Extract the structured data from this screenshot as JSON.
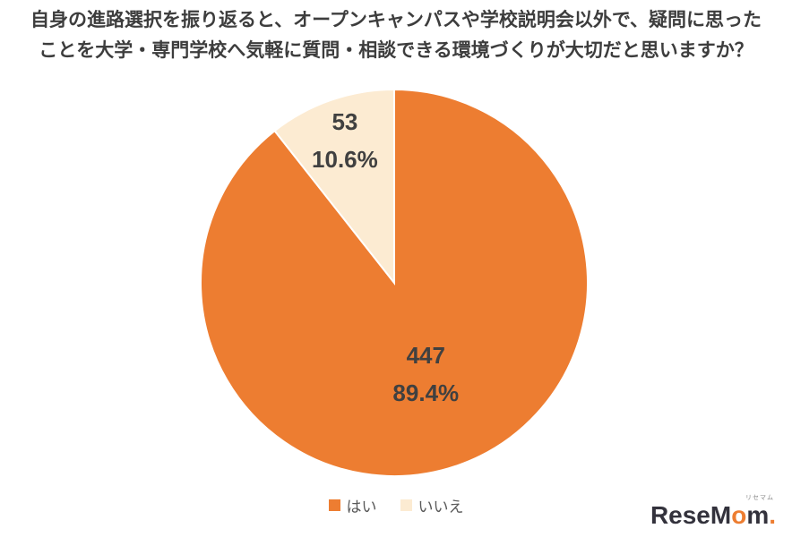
{
  "title": {
    "line1": "自身の進路選択を振り返ると、オープンキャンパスや学校説明会以外で、疑問に思った",
    "line2": "ことを大学・専門学校へ気軽に質問・相談できる環境づくりが大切だと思いますか？"
  },
  "chart_data": {
    "type": "pie",
    "categories": [
      "はい",
      "いいえ"
    ],
    "values": [
      447,
      53
    ],
    "value_labels": [
      "447",
      "53"
    ],
    "percent_labels": [
      "89.4%",
      "10.6%"
    ],
    "colors": [
      "#ED7D31",
      "#FCEBD2"
    ],
    "label_color": "#404040",
    "start_angle_deg": 0,
    "direction": "clockwise",
    "legend_position": "bottom",
    "slice_border_color": "#ffffff"
  },
  "logo": {
    "part1": "ReseM",
    "accent": "o",
    "part2": "m",
    "period": ".",
    "ruby": "リセマム"
  }
}
